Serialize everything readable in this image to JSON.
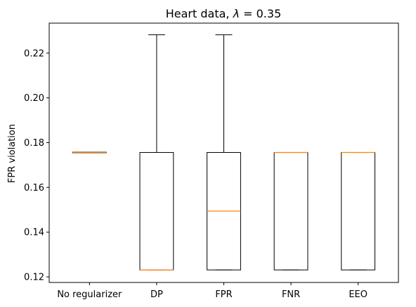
{
  "chart_data": {
    "type": "box",
    "title_prefix": "Heart data, ",
    "title_symbol": "λ",
    "title_suffix": " =  0.35",
    "xlabel": "",
    "ylabel": "FPR violation",
    "ylim": [
      0.1175,
      0.2334
    ],
    "yticks": [
      0.12,
      0.14,
      0.16,
      0.18,
      0.2,
      0.22
    ],
    "ytick_labels": [
      "0.12",
      "0.14",
      "0.16",
      "0.18",
      "0.20",
      "0.22"
    ],
    "categories": [
      "No regularizer",
      "DP",
      "FPR",
      "FNR",
      "EEO"
    ],
    "boxes": [
      {
        "whisker_low": 0.1756,
        "q1": 0.1756,
        "median": 0.1756,
        "q3": 0.1756,
        "whisker_high": 0.1756
      },
      {
        "whisker_low": 0.1231,
        "q1": 0.1231,
        "median": 0.1231,
        "q3": 0.1756,
        "whisker_high": 0.2282
      },
      {
        "whisker_low": 0.1231,
        "q1": 0.1231,
        "median": 0.1494,
        "q3": 0.1756,
        "whisker_high": 0.2282
      },
      {
        "whisker_low": 0.1231,
        "q1": 0.1231,
        "median": 0.1756,
        "q3": 0.1756,
        "whisker_high": 0.1756
      },
      {
        "whisker_low": 0.1231,
        "q1": 0.1231,
        "median": 0.1756,
        "q3": 0.1756,
        "whisker_high": 0.1756
      }
    ],
    "colors": {
      "box": "#000000",
      "median": "#ff7f0e",
      "axes": "#000000"
    },
    "grid": false
  }
}
